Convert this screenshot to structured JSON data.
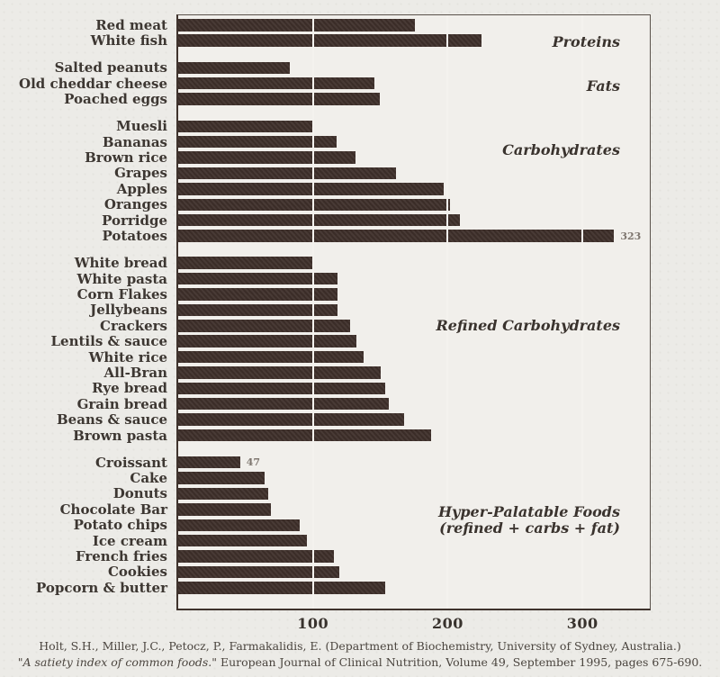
{
  "footer": {
    "line1": "Holt, S.H., Miller, J.C., Petocz, P., Farmakalidis, E. (Department of Biochemistry, University of Sydney, Australia.)",
    "line2_italic": "\"A satiety index of common foods.\"",
    "line2_rest": " European Journal of Clinical Nutrition, Volume 49, September 1995, pages 675-690."
  },
  "colors": {
    "bar": "#3e2f2a",
    "paper": "#ecebe7",
    "plot_background": "#f1efeb",
    "frame": "#5a524b",
    "annotation_text": "#7e766f"
  },
  "chart_data": {
    "type": "bar",
    "orientation": "horizontal",
    "title": "",
    "xlabel": "",
    "ylabel": "",
    "xlim": [
      0,
      350
    ],
    "x_ticks": [
      100,
      200,
      300
    ],
    "grid": "vertical gridlines at 100, 200, 300",
    "legend_position": "group labels right-aligned inside plot",
    "groups": [
      {
        "label": "Proteins",
        "items": [
          {
            "name": "Red meat",
            "value": 176
          },
          {
            "name": "White fish",
            "value": 225
          }
        ]
      },
      {
        "label": "Fats",
        "items": [
          {
            "name": "Salted peanuts",
            "value": 84
          },
          {
            "name": "Old cheddar cheese",
            "value": 146
          },
          {
            "name": "Poached eggs",
            "value": 150
          }
        ]
      },
      {
        "label": "Carbohydrates",
        "items": [
          {
            "name": "Muesli",
            "value": 100
          },
          {
            "name": "Bananas",
            "value": 118
          },
          {
            "name": "Brown rice",
            "value": 132
          },
          {
            "name": "Grapes",
            "value": 162
          },
          {
            "name": "Apples",
            "value": 197
          },
          {
            "name": "Oranges",
            "value": 202
          },
          {
            "name": "Porridge",
            "value": 209
          },
          {
            "name": "Potatoes",
            "value": 323,
            "annotation": "323"
          }
        ]
      },
      {
        "label": "Refined Carbohydrates",
        "items": [
          {
            "name": "White bread",
            "value": 100
          },
          {
            "name": "White pasta",
            "value": 119
          },
          {
            "name": "Corn Flakes",
            "value": 119
          },
          {
            "name": "Jellybeans",
            "value": 119
          },
          {
            "name": "Crackers",
            "value": 128
          },
          {
            "name": "Lentils & sauce",
            "value": 133
          },
          {
            "name": "White rice",
            "value": 138
          },
          {
            "name": "All-Bran",
            "value": 151
          },
          {
            "name": "Rye bread",
            "value": 154
          },
          {
            "name": "Grain bread",
            "value": 157
          },
          {
            "name": "Beans & sauce",
            "value": 168
          },
          {
            "name": "Brown pasta",
            "value": 188
          }
        ]
      },
      {
        "label": "Hyper-Palatable Foods",
        "label_line2": "(refined + carbs + fat)",
        "items": [
          {
            "name": "Croissant",
            "value": 47,
            "annotation": "47"
          },
          {
            "name": "Cake",
            "value": 65
          },
          {
            "name": "Donuts",
            "value": 68
          },
          {
            "name": "Chocolate Bar",
            "value": 70
          },
          {
            "name": "Potato chips",
            "value": 91
          },
          {
            "name": "Ice cream",
            "value": 96
          },
          {
            "name": "French fries",
            "value": 116
          },
          {
            "name": "Cookies",
            "value": 120
          },
          {
            "name": "Popcorn & butter",
            "value": 154
          }
        ]
      }
    ]
  }
}
